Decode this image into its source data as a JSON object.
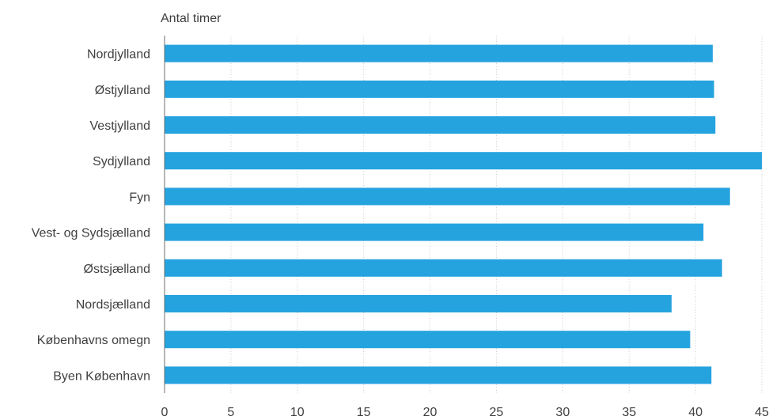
{
  "chart_data": {
    "type": "bar",
    "orientation": "horizontal",
    "ylabel": "Antal timer",
    "categories": [
      "Nordjylland",
      "Østjylland",
      "Vestjylland",
      "Sydjylland",
      "Fyn",
      "Vest- og Sydsjælland",
      "Østsjælland",
      "Nordsjælland",
      "Københavns omegn",
      "Byen København"
    ],
    "values": [
      41.3,
      41.4,
      41.5,
      45.0,
      42.6,
      40.6,
      42.0,
      38.2,
      39.6,
      41.2
    ],
    "xlim": [
      0,
      45
    ],
    "xticks": [
      "0",
      "5",
      "10",
      "15",
      "20",
      "25",
      "30",
      "35",
      "40",
      "45"
    ],
    "grid": "vertical dotted",
    "colors": {
      "bar": "#25a3df"
    }
  }
}
